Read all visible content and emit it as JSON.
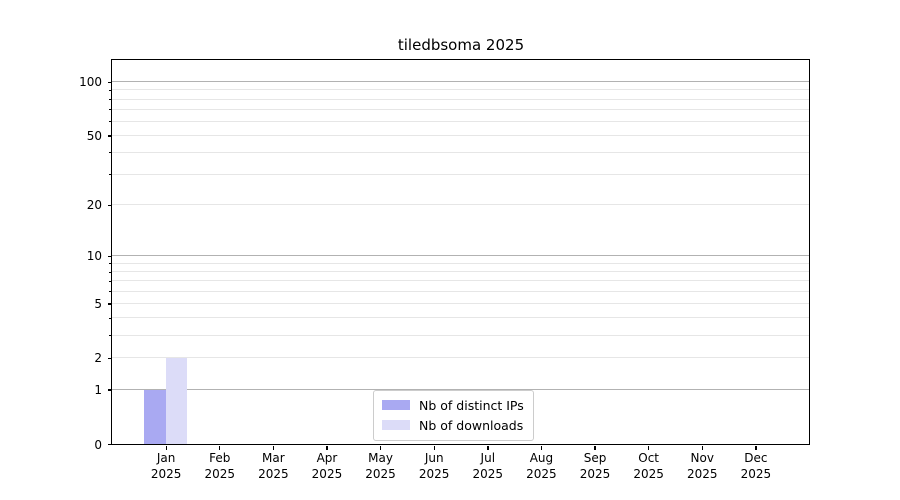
{
  "chart_data": {
    "type": "bar",
    "title": "tiledbsoma 2025",
    "categories": [
      "Jan",
      "Feb",
      "Mar",
      "Apr",
      "May",
      "Jun",
      "Jul",
      "Aug",
      "Sep",
      "Oct",
      "Nov",
      "Dec"
    ],
    "x_tick_sublabel": "2025",
    "series": [
      {
        "name": "Nb of distinct IPs",
        "color": "#a9a9f2",
        "values": [
          1,
          0,
          0,
          0,
          0,
          0,
          0,
          0,
          0,
          0,
          0,
          0
        ]
      },
      {
        "name": "Nb of downloads",
        "color": "#dcdcf8",
        "values": [
          2,
          0,
          0,
          0,
          0,
          0,
          0,
          0,
          0,
          0,
          0,
          0
        ]
      }
    ],
    "y_axis": {
      "scale": "log1p",
      "tick_values": [
        0,
        1,
        2,
        5,
        10,
        20,
        50,
        100
      ],
      "tick_labels": [
        "0",
        "1",
        "2",
        "5",
        "10",
        "20",
        "50",
        "100"
      ],
      "minor_values": [
        3,
        4,
        6,
        7,
        8,
        9,
        30,
        40,
        60,
        70,
        80,
        90
      ],
      "major_grid_values": [
        1,
        10,
        100
      ],
      "ylim": [
        0,
        114
      ]
    },
    "legend": {
      "position": "lower center",
      "entries": [
        "Nb of distinct IPs",
        "Nb of downloads"
      ]
    },
    "colors": {
      "grid_major": "#b2b2b2",
      "grid_minor": "#e6e6e6",
      "axis": "#000000",
      "background": "#ffffff"
    }
  }
}
